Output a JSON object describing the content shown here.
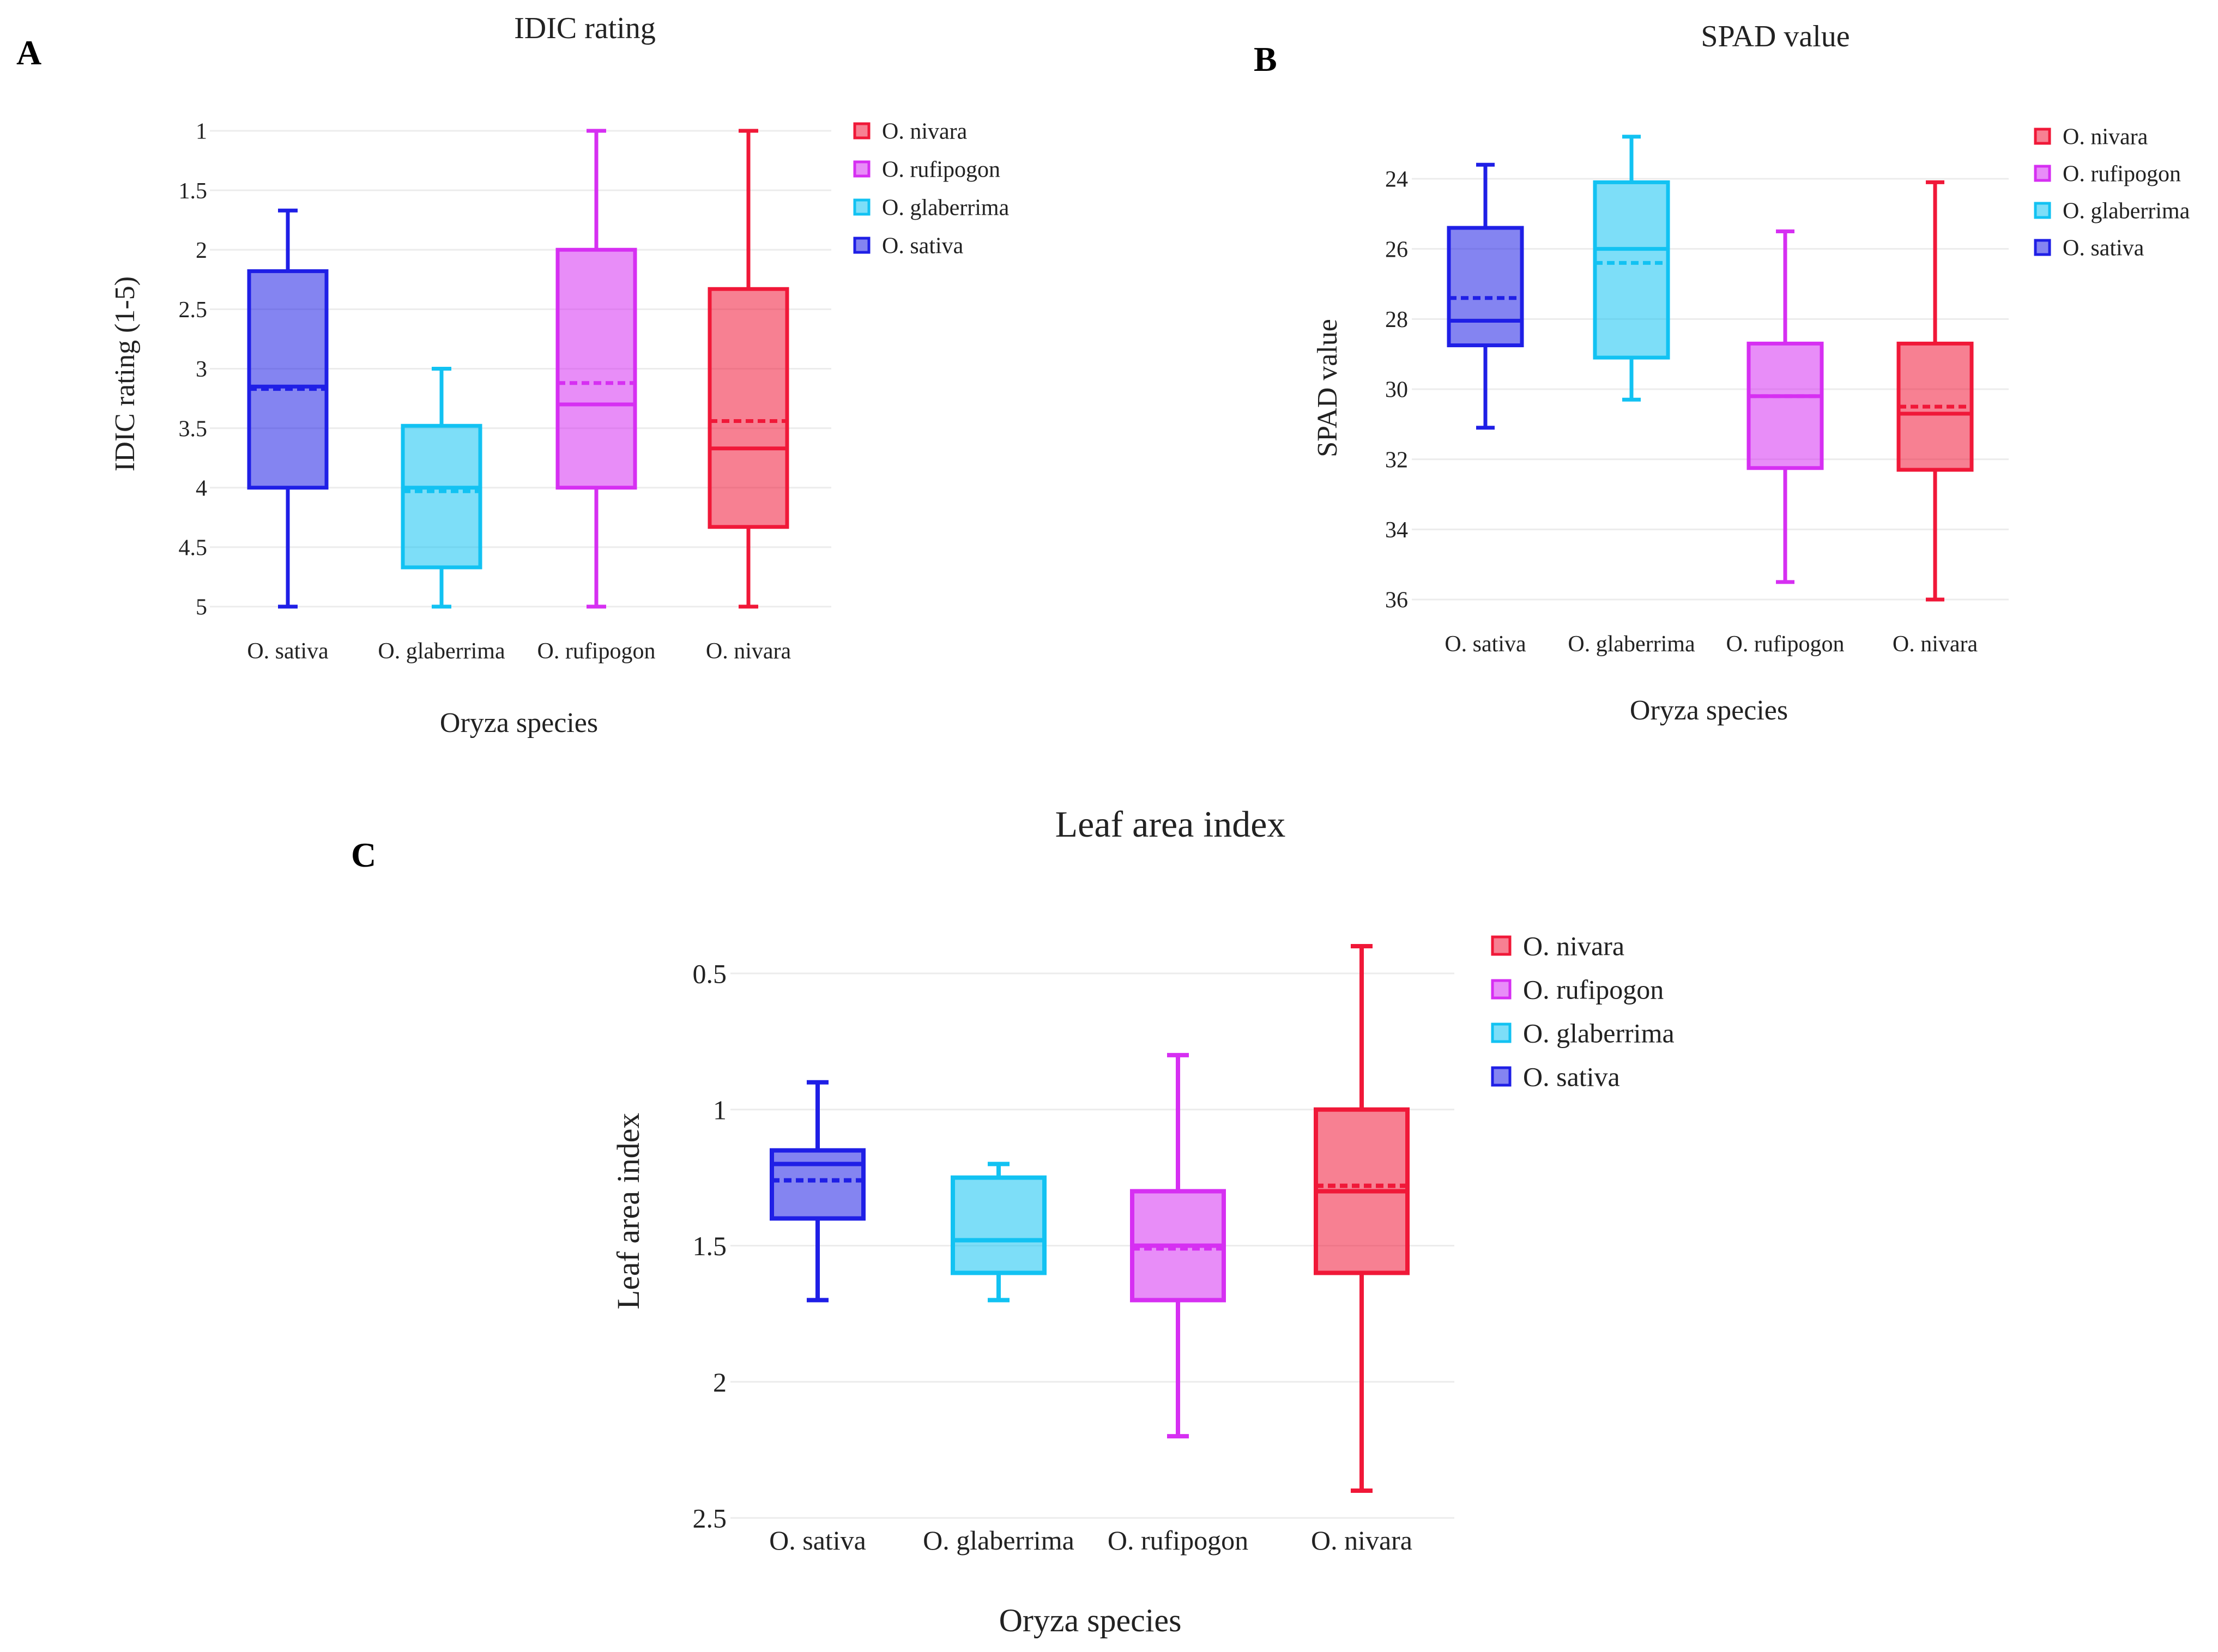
{
  "chart_data": [
    {
      "panel": "A",
      "type": "box",
      "title": "IDIC rating",
      "xlabel": "Oryza species",
      "ylabel": "IDIC rating (1-5)",
      "y_reversed": true,
      "ylim": [
        1,
        5
      ],
      "yticks": [
        "1",
        "1.5",
        "2",
        "2.5",
        "3",
        "3.5",
        "4",
        "4.5",
        "5"
      ],
      "categories": [
        "O. sativa",
        "O. glaberrima",
        "O. rufipogon",
        "O. nivara"
      ],
      "series": [
        {
          "name": "O. sativa",
          "min": 1.67,
          "q1": 2.18,
          "median": 3.15,
          "mean": 3.17,
          "q3": 4.0,
          "max": 5.0
        },
        {
          "name": "O. glaberrima",
          "min": 3.0,
          "q1": 3.48,
          "median": 4.0,
          "mean": 4.03,
          "q3": 4.67,
          "max": 5.0
        },
        {
          "name": "O. rufipogon",
          "min": 1.0,
          "q1": 2.0,
          "median": 3.3,
          "mean": 3.12,
          "q3": 4.0,
          "max": 5.0
        },
        {
          "name": "O. nivara",
          "min": 1.0,
          "q1": 2.33,
          "median": 3.67,
          "mean": 3.44,
          "q3": 4.33,
          "max": 5.0
        }
      ],
      "legend": [
        "O. nivara",
        "O. rufipogon",
        "O. glaberrima",
        "O. sativa"
      ]
    },
    {
      "panel": "B",
      "type": "box",
      "title": "SPAD value",
      "xlabel": "Oryza species",
      "ylabel": "SPAD value",
      "y_reversed": true,
      "ylim": [
        22.5,
        37
      ],
      "yticks": [
        "24",
        "26",
        "28",
        "30",
        "32",
        "34",
        "36"
      ],
      "categories": [
        "O. sativa",
        "O. glaberrima",
        "O. rufipogon",
        "O. nivara"
      ],
      "series": [
        {
          "name": "O. sativa",
          "min": 23.6,
          "q1": 25.4,
          "median": 28.05,
          "mean": 27.4,
          "q3": 28.75,
          "max": 31.1
        },
        {
          "name": "O. glaberrima",
          "min": 22.8,
          "q1": 24.1,
          "median": 26.0,
          "mean": 26.4,
          "q3": 29.1,
          "max": 30.3
        },
        {
          "name": "O. rufipogon",
          "min": 25.5,
          "q1": 28.7,
          "median": 30.2,
          "mean": 30.2,
          "q3": 32.25,
          "max": 35.5
        },
        {
          "name": "O. nivara",
          "min": 24.1,
          "q1": 28.7,
          "median": 30.7,
          "mean": 30.5,
          "q3": 32.3,
          "max": 36.0
        }
      ],
      "legend": [
        "O. nivara",
        "O. rufipogon",
        "O. glaberrima",
        "O. sativa"
      ]
    },
    {
      "panel": "C",
      "type": "box",
      "title": "Leaf area index",
      "xlabel": "Oryza species",
      "ylabel": "Leaf area index",
      "y_reversed": true,
      "ylim": [
        0.4,
        2.5
      ],
      "yticks": [
        "0.5",
        "1",
        "1.5",
        "2",
        "2.5"
      ],
      "categories": [
        "O. sativa",
        "O. glaberrima",
        "O. rufipogon",
        "O. nivara"
      ],
      "series": [
        {
          "name": "O. sativa",
          "min": 0.9,
          "q1": 1.15,
          "median": 1.2,
          "mean": 1.26,
          "q3": 1.4,
          "max": 1.7
        },
        {
          "name": "O. glaberrima",
          "min": 1.2,
          "q1": 1.25,
          "median": 1.48,
          "mean": 1.48,
          "q3": 1.6,
          "max": 1.7
        },
        {
          "name": "O. rufipogon",
          "min": 0.8,
          "q1": 1.3,
          "median": 1.5,
          "mean": 1.51,
          "q3": 1.7,
          "max": 2.2
        },
        {
          "name": "O. nivara",
          "min": 0.4,
          "q1": 1.0,
          "median": 1.3,
          "mean": 1.28,
          "q3": 1.6,
          "max": 2.4
        }
      ],
      "legend": [
        "O. nivara",
        "O. rufipogon",
        "O. glaberrima",
        "O. sativa"
      ]
    }
  ],
  "colors": {
    "O. sativa": "#1f1fe6",
    "O. glaberrima": "#12c2f2",
    "O. rufipogon": "#d62ff2",
    "O. nivara": "#f01838"
  }
}
